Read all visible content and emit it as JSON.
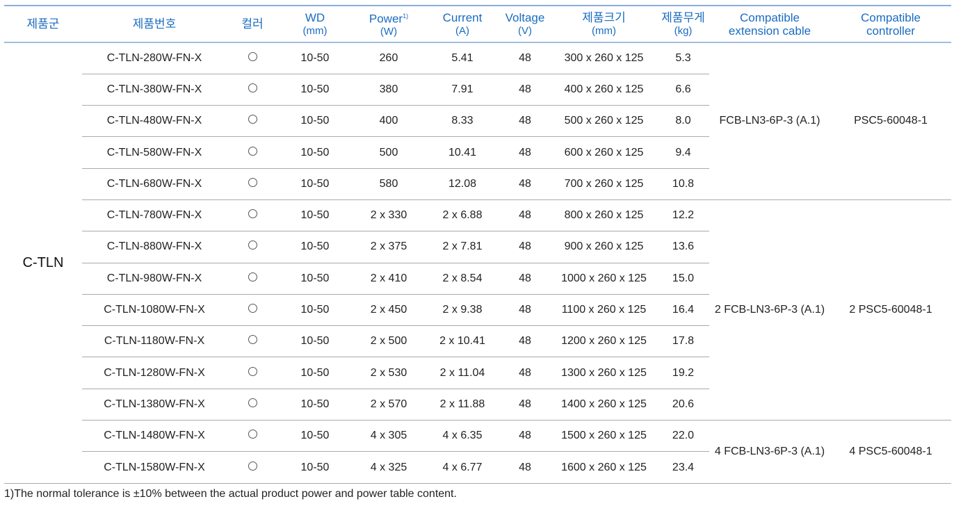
{
  "header": {
    "family": "제품군",
    "product_no": "제품번호",
    "color": "컬러",
    "wd": {
      "label": "WD",
      "unit": "(mm)"
    },
    "power": {
      "label": "Power",
      "sup": "1)",
      "unit": "(W)"
    },
    "current": {
      "label": "Current",
      "unit": "(A)"
    },
    "voltage": {
      "label": "Voltage",
      "unit": "(V)"
    },
    "size": {
      "label": "제품크기",
      "unit": "(mm)"
    },
    "weight": {
      "label": "제품무게",
      "unit": "(kg)"
    },
    "cable": {
      "line1": "Compatible",
      "line2": "extension cable"
    },
    "controller": {
      "line1": "Compatible",
      "line2": "controller"
    }
  },
  "family": "C-TLN",
  "color_icon": "white-circle-icon",
  "groups": [
    {
      "cable": "FCB-LN3-6P-3 (A.1)",
      "controller": "PSC5-60048-1",
      "rows": [
        [
          "C-TLN-280W-FN-X",
          "10-50",
          "260",
          "5.41",
          "48",
          "300 x 260 x 125",
          "5.3"
        ],
        [
          "C-TLN-380W-FN-X",
          "10-50",
          "380",
          "7.91",
          "48",
          "400 x 260 x 125",
          "6.6"
        ],
        [
          "C-TLN-480W-FN-X",
          "10-50",
          "400",
          "8.33",
          "48",
          "500 x 260 x 125",
          "8.0"
        ],
        [
          "C-TLN-580W-FN-X",
          "10-50",
          "500",
          "10.41",
          "48",
          "600 x 260 x 125",
          "9.4"
        ],
        [
          "C-TLN-680W-FN-X",
          "10-50",
          "580",
          "12.08",
          "48",
          "700 x 260 x 125",
          "10.8"
        ]
      ]
    },
    {
      "cable": "2 FCB-LN3-6P-3 (A.1)",
      "controller": "2 PSC5-60048-1",
      "rows": [
        [
          "C-TLN-780W-FN-X",
          "10-50",
          "2 x 330",
          "2 x 6.88",
          "48",
          "800 x 260 x 125",
          "12.2"
        ],
        [
          "C-TLN-880W-FN-X",
          "10-50",
          "2 x 375",
          "2 x 7.81",
          "48",
          "900 x 260 x 125",
          "13.6"
        ],
        [
          "C-TLN-980W-FN-X",
          "10-50",
          "2 x 410",
          "2 x 8.54",
          "48",
          "1000 x 260 x 125",
          "15.0"
        ],
        [
          "C-TLN-1080W-FN-X",
          "10-50",
          "2 x 450",
          "2 x 9.38",
          "48",
          "1100 x 260 x 125",
          "16.4"
        ],
        [
          "C-TLN-1180W-FN-X",
          "10-50",
          "2 x 500",
          "2 x 10.41",
          "48",
          "1200 x 260 x 125",
          "17.8"
        ],
        [
          "C-TLN-1280W-FN-X",
          "10-50",
          "2 x 530",
          "2 x 11.04",
          "48",
          "1300 x 260 x 125",
          "19.2"
        ],
        [
          "C-TLN-1380W-FN-X",
          "10-50",
          "2 x 570",
          "2 x 11.88",
          "48",
          "1400 x 260 x 125",
          "20.6"
        ]
      ]
    },
    {
      "cable": "4 FCB-LN3-6P-3 (A.1)",
      "controller": "4 PSC5-60048-1",
      "rows": [
        [
          "C-TLN-1480W-FN-X",
          "10-50",
          "4 x 305",
          "4 x 6.35",
          "48",
          "1500 x 260 x 125",
          "22.0"
        ],
        [
          "C-TLN-1580W-FN-X",
          "10-50",
          "4 x 325",
          "4 x 6.77",
          "48",
          "1600 x 260 x 125",
          "23.4"
        ]
      ]
    }
  ],
  "footnote": "1)The normal tolerance is ±10% between the actual product power and power table content."
}
